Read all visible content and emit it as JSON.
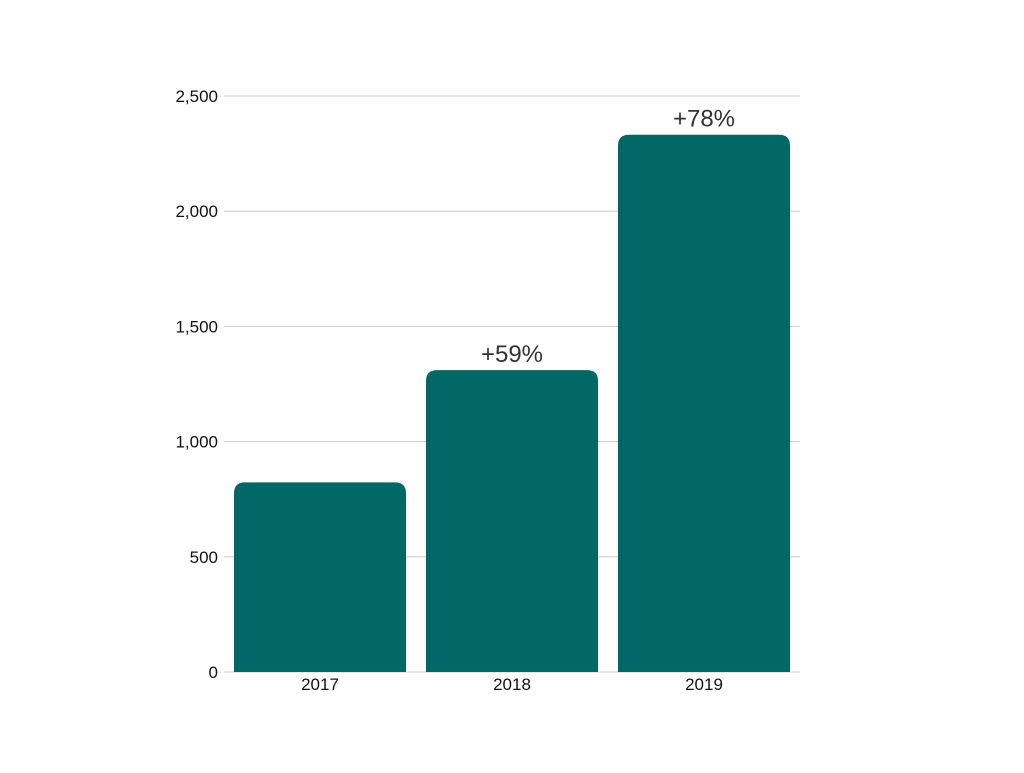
{
  "chart_data": {
    "type": "bar",
    "title": "",
    "xlabel": "",
    "ylabel": "",
    "categories": [
      "2017",
      "2018",
      "2019"
    ],
    "values": [
      823,
      1310,
      2332
    ],
    "data_labels": [
      "",
      "+59%",
      "+78%"
    ],
    "ylim": [
      0,
      2500
    ],
    "yticks": [
      0,
      500,
      1000,
      1500,
      2000,
      2500
    ],
    "ytick_labels": [
      "0",
      "500",
      "1,000",
      "1,500",
      "2,000",
      "2,500"
    ],
    "grid": "horizontal",
    "legend": "none",
    "colors": {
      "bar": "#016865",
      "grid": "#cccccc",
      "axis_text": "#111111",
      "label_text": "#333333"
    }
  }
}
